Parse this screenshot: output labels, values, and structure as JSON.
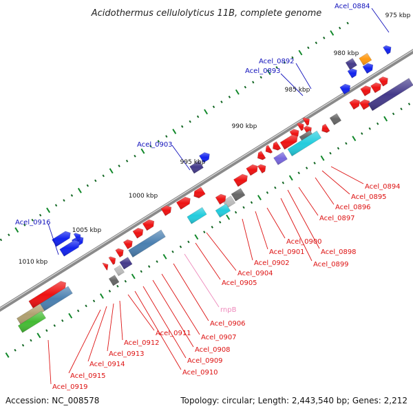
{
  "title": "Acidothermus cellulolyticus 11B, complete genome",
  "footer": {
    "accession": "Accession: NC_008578",
    "topology": "Topology: circular; Length: 2,443,540 bp; Genes: 2,212"
  },
  "colors": {
    "backbone": "#8a8a8a",
    "red": "#ee1111",
    "blue": "#1122ee",
    "navy": "#443a8a",
    "cyan": "#22ccdd",
    "steel": "#4a7fb0",
    "gray": "#666666",
    "lightgray": "#bbbbbb",
    "orange": "#ff9911",
    "purple": "#7766dd",
    "tan": "#b0a070",
    "green": "#44bb33",
    "tick_major": "#11882a",
    "tick_minor": "#116622",
    "label_blue": "#1111bb",
    "label_red": "#dd1111",
    "label_pink": "#ee88bb"
  },
  "kbp_labels": [
    {
      "text": "975 kbp"
    },
    {
      "text": "980 kbp"
    },
    {
      "text": "985 kbp"
    },
    {
      "text": "990 kbp"
    },
    {
      "text": "995 kbp"
    },
    {
      "text": "1000 kbp"
    },
    {
      "text": "1005 kbp"
    },
    {
      "text": "1010 kbp"
    }
  ],
  "gene_labels": [
    {
      "text": "Acel_0884",
      "color": "blue"
    },
    {
      "text": "Acel_0892",
      "color": "blue"
    },
    {
      "text": "Acel_0893",
      "color": "blue"
    },
    {
      "text": "Acel_0903",
      "color": "blue"
    },
    {
      "text": "Acel_0916",
      "color": "blue"
    },
    {
      "text": "Acel_0894",
      "color": "red"
    },
    {
      "text": "Acel_0895",
      "color": "red"
    },
    {
      "text": "Acel_0896",
      "color": "red"
    },
    {
      "text": "Acel_0897",
      "color": "red"
    },
    {
      "text": "Acel_0898",
      "color": "red"
    },
    {
      "text": "Acel_0899",
      "color": "red"
    },
    {
      "text": "Acel_0900",
      "color": "red"
    },
    {
      "text": "Acel_0901",
      "color": "red"
    },
    {
      "text": "Acel_0902",
      "color": "red"
    },
    {
      "text": "Acel_0904",
      "color": "red"
    },
    {
      "text": "Acel_0905",
      "color": "red"
    },
    {
      "text": "rnpB",
      "color": "pink"
    },
    {
      "text": "Acel_0906",
      "color": "red"
    },
    {
      "text": "Acel_0907",
      "color": "red"
    },
    {
      "text": "Acel_0908",
      "color": "red"
    },
    {
      "text": "Acel_0909",
      "color": "red"
    },
    {
      "text": "Acel_0910",
      "color": "red"
    },
    {
      "text": "Acel_0911",
      "color": "red"
    },
    {
      "text": "Acel_0912",
      "color": "red"
    },
    {
      "text": "Acel_0913",
      "color": "red"
    },
    {
      "text": "Acel_0914",
      "color": "red"
    },
    {
      "text": "Acel_0915",
      "color": "red"
    },
    {
      "text": "Acel_0919",
      "color": "red"
    }
  ]
}
